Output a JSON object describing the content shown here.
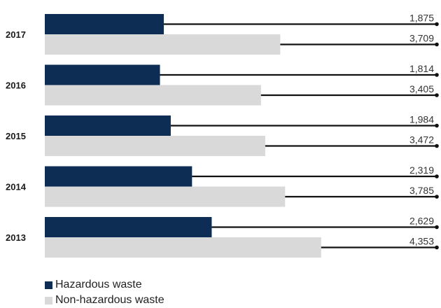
{
  "chart_data": {
    "type": "bar",
    "orientation": "horizontal",
    "categories": [
      "2017",
      "2016",
      "2015",
      "2014",
      "2013"
    ],
    "series": [
      {
        "name": "Hazardous waste",
        "values": [
          1875,
          1814,
          1984,
          2319,
          2629
        ],
        "labels": [
          "1,875",
          "1,814",
          "1,984",
          "2,319",
          "2,629"
        ],
        "color": "#0d2d55"
      },
      {
        "name": "Non-hazardous waste",
        "values": [
          3709,
          3405,
          3472,
          3785,
          4353
        ],
        "labels": [
          "3,709",
          "3,405",
          "3,472",
          "3,785",
          "4,353"
        ],
        "color": "#d9d9d9"
      }
    ],
    "xlim": [
      0,
      4500
    ],
    "grid": false,
    "axes_visible": false,
    "legend_position": "bottom-left",
    "data_labels": "right-end leader lines"
  }
}
